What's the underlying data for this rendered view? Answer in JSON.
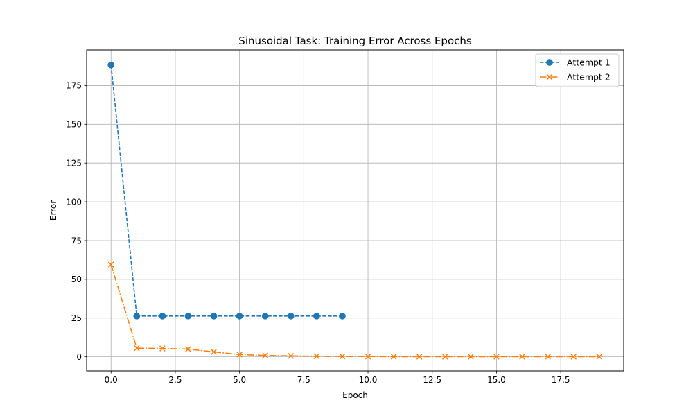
{
  "chart_data": {
    "type": "line",
    "title": "Sinusoidal Task: Training Error Across Epochs",
    "xlabel": "Epoch",
    "ylabel": "Error",
    "xlim": [
      -0.95,
      19.95
    ],
    "ylim": [
      -9.1,
      198.0
    ],
    "xticks": [
      0.0,
      2.5,
      5.0,
      7.5,
      10.0,
      12.5,
      15.0,
      17.5
    ],
    "xtick_labels": [
      "0.0",
      "2.5",
      "5.0",
      "7.5",
      "10.0",
      "12.5",
      "15.0",
      "17.5"
    ],
    "yticks": [
      0,
      25,
      50,
      75,
      100,
      125,
      150,
      175
    ],
    "ytick_labels": [
      "0",
      "25",
      "50",
      "75",
      "100",
      "125",
      "150",
      "175"
    ],
    "grid": true,
    "legend_position": "top-right",
    "series": [
      {
        "name": "Attempt 1",
        "color": "#1f77b4",
        "linestyle": "dashed",
        "marker": "circle",
        "x": [
          0,
          1,
          2,
          3,
          4,
          5,
          6,
          7,
          8,
          9
        ],
        "y": [
          188.3,
          26.3,
          26.3,
          26.3,
          26.3,
          26.3,
          26.3,
          26.3,
          26.3,
          26.3
        ]
      },
      {
        "name": "Attempt 2",
        "color": "#ff7f0e",
        "linestyle": "dashdot",
        "marker": "x",
        "x": [
          0,
          1,
          2,
          3,
          4,
          5,
          6,
          7,
          8,
          9,
          10,
          11,
          12,
          13,
          14,
          15,
          16,
          17,
          18,
          19
        ],
        "y": [
          59.5,
          5.6,
          5.4,
          5.0,
          3.2,
          1.5,
          0.9,
          0.6,
          0.4,
          0.3,
          0.2,
          0.1,
          0.1,
          0.1,
          0.1,
          0.1,
          0.1,
          0.1,
          0.1,
          0.1
        ]
      }
    ]
  }
}
